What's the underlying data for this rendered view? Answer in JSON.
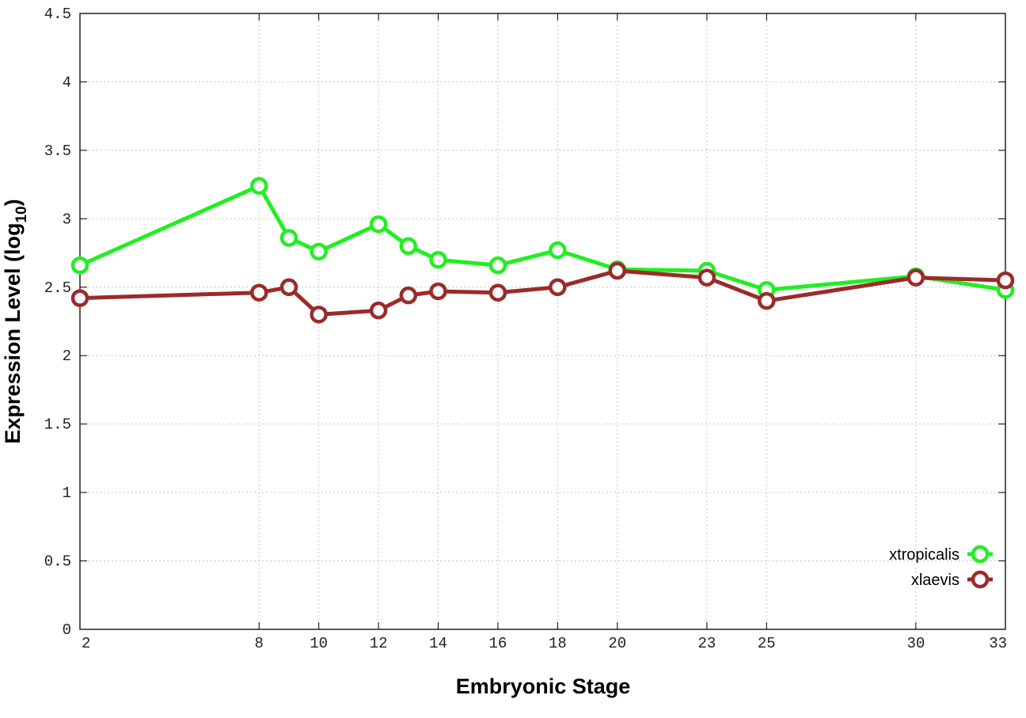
{
  "chart_data": {
    "type": "line",
    "title": "",
    "xlabel": "Embryonic Stage",
    "ylabel_main": "Expression Level (log",
    "ylabel_sub": "10",
    "ylabel_close": ")",
    "xlim": [
      2,
      33
    ],
    "ylim": [
      0,
      4.5
    ],
    "x_ticks": [
      2,
      8,
      10,
      12,
      14,
      16,
      18,
      20,
      23,
      25,
      30,
      33
    ],
    "x_tick_labels": [
      "2",
      "8",
      "10",
      "12",
      "14",
      "16",
      "18",
      "20",
      "23",
      "25",
      "30",
      "33"
    ],
    "y_ticks": [
      0,
      0.5,
      1,
      1.5,
      2,
      2.5,
      3,
      3.5,
      4,
      4.5
    ],
    "y_tick_labels": [
      "0",
      "0.5",
      "1",
      "1.5",
      "2",
      "2.5",
      "3",
      "3.5",
      "4",
      "4.5"
    ],
    "grid": true,
    "legend_position": "bottom-right",
    "x": [
      2,
      8,
      9,
      10,
      12,
      13,
      14,
      16,
      18,
      20,
      23,
      25,
      30,
      33
    ],
    "series": [
      {
        "name": "xtropicalis",
        "color": "#22ee22",
        "values": [
          2.66,
          3.24,
          2.86,
          2.76,
          2.96,
          2.8,
          2.7,
          2.66,
          2.77,
          2.63,
          2.62,
          2.48,
          2.58,
          2.48
        ]
      },
      {
        "name": "xlaevis",
        "color": "#9b2b2b",
        "values": [
          2.42,
          2.46,
          2.5,
          2.3,
          2.33,
          2.44,
          2.47,
          2.46,
          2.5,
          2.62,
          2.57,
          2.4,
          2.57,
          2.55
        ]
      }
    ]
  }
}
